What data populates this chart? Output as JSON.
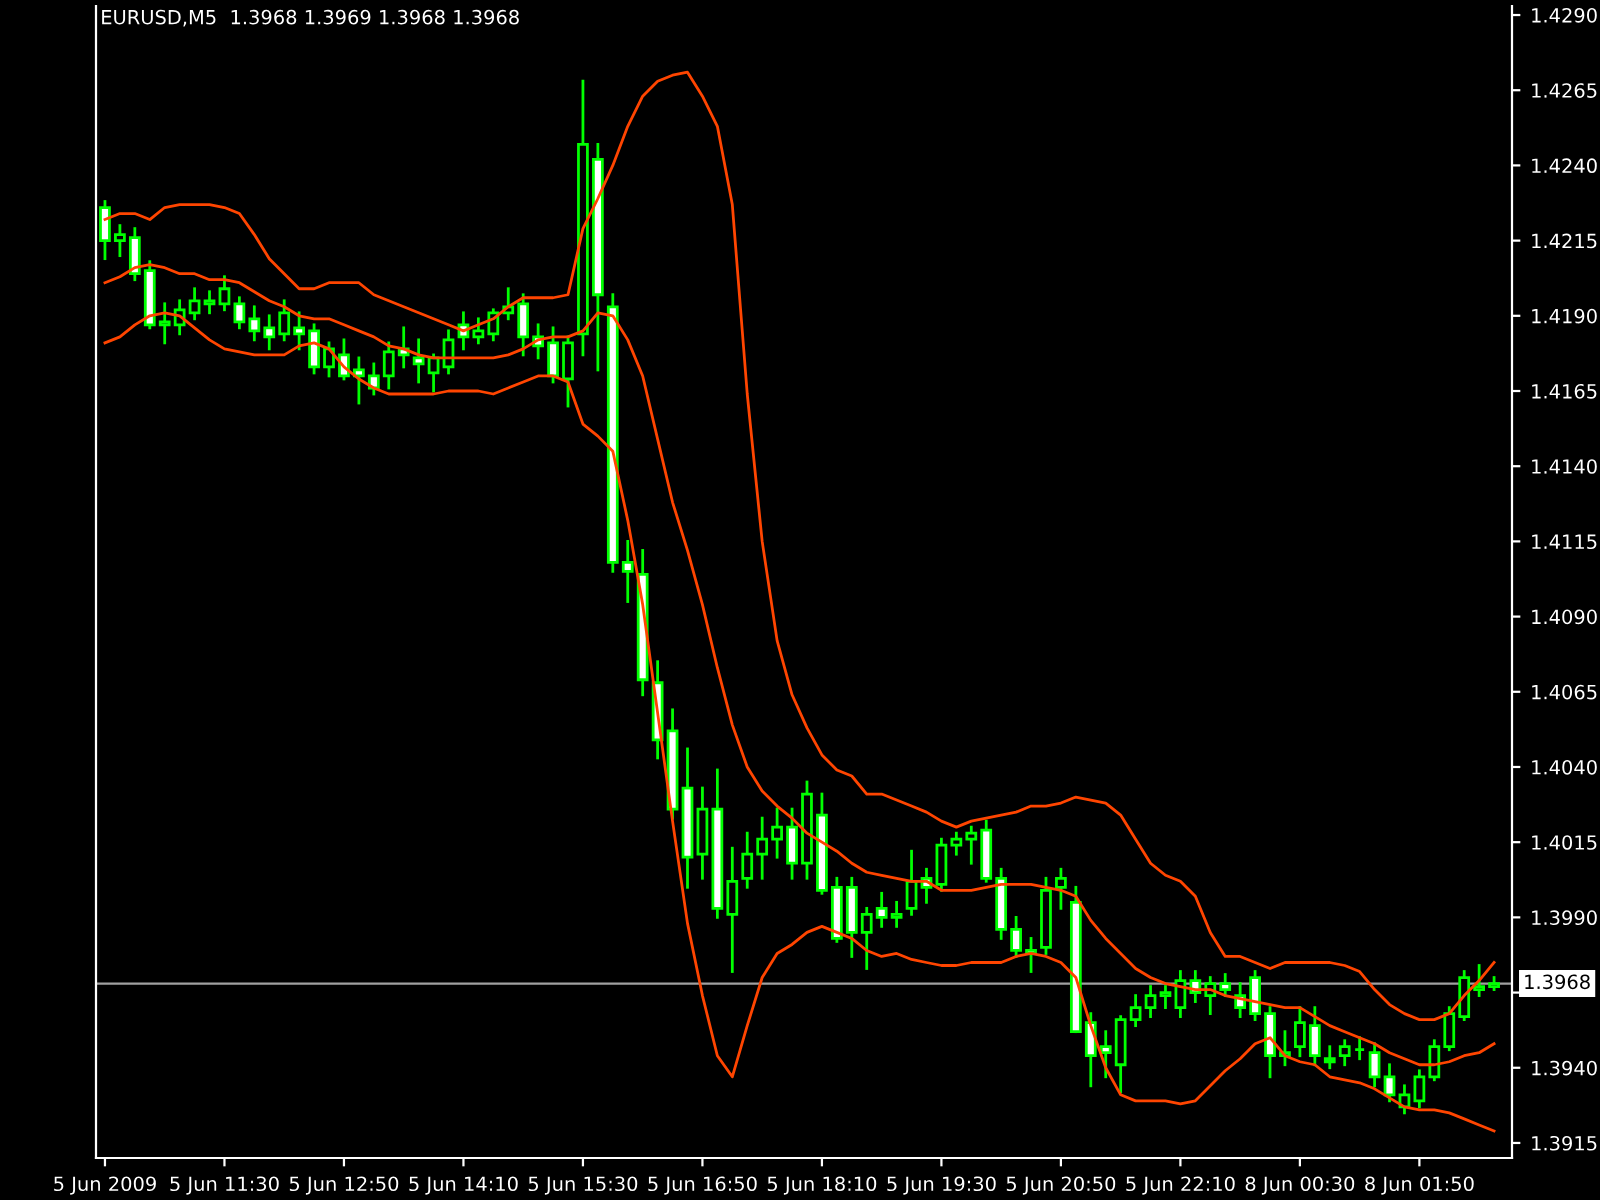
{
  "chart_data": {
    "type": "candlestick",
    "title": "EURUSD,M5  1.3968 1.3969 1.3968 1.3968",
    "categories": [
      "5 Jun 2009",
      null,
      null,
      null,
      null,
      null,
      null,
      null,
      "5 Jun 11:30",
      null,
      null,
      null,
      null,
      null,
      null,
      null,
      "5 Jun 12:50",
      null,
      null,
      null,
      null,
      null,
      null,
      null,
      "5 Jun 14:10",
      null,
      null,
      null,
      null,
      null,
      null,
      null,
      "5 Jun 15:30",
      null,
      null,
      null,
      null,
      null,
      null,
      null,
      "5 Jun 16:50",
      null,
      null,
      null,
      null,
      null,
      null,
      null,
      "5 Jun 18:10",
      null,
      null,
      null,
      null,
      null,
      null,
      null,
      "5 Jun 19:30",
      null,
      null,
      null,
      null,
      null,
      null,
      null,
      "5 Jun 20:50",
      null,
      null,
      null,
      null,
      null,
      null,
      null,
      "5 Jun 22:10",
      null,
      null,
      null,
      null,
      null,
      null,
      null,
      "8 Jun 00:30",
      null,
      null,
      null,
      null,
      null,
      null,
      null,
      "8 Jun 01:50",
      null,
      null,
      null,
      null,
      null
    ],
    "color": "#00ff00",
    "ohlc": [
      [
        1.4226,
        1.4228,
        1.4209,
        1.4215
      ],
      [
        1.4215,
        1.422,
        1.421,
        1.4217
      ],
      [
        1.4216,
        1.4219,
        1.4202,
        1.4204
      ],
      [
        1.4205,
        1.4208,
        1.4186,
        1.4187
      ],
      [
        1.4187,
        1.4194,
        1.4181,
        1.4188
      ],
      [
        1.4187,
        1.4195,
        1.4184,
        1.4192
      ],
      [
        1.4191,
        1.4199,
        1.4189,
        1.4195
      ],
      [
        1.4194,
        1.4198,
        1.4191,
        1.4195
      ],
      [
        1.4194,
        1.4203,
        1.4192,
        1.4199
      ],
      [
        1.4194,
        1.4196,
        1.4186,
        1.4188
      ],
      [
        1.4189,
        1.4193,
        1.4182,
        1.4185
      ],
      [
        1.4186,
        1.419,
        1.4179,
        1.4183
      ],
      [
        1.4184,
        1.4195,
        1.4182,
        1.4191
      ],
      [
        1.4186,
        1.4191,
        1.4179,
        1.4184
      ],
      [
        1.4185,
        1.4187,
        1.4171,
        1.4173
      ],
      [
        1.4173,
        1.4181,
        1.417,
        1.4179
      ],
      [
        1.4177,
        1.4182,
        1.4169,
        1.417
      ],
      [
        1.4172,
        1.4176,
        1.4161,
        1.417
      ],
      [
        1.417,
        1.4174,
        1.4164,
        1.4166
      ],
      [
        1.417,
        1.4181,
        1.4166,
        1.4178
      ],
      [
        1.4179,
        1.4186,
        1.4173,
        1.4177
      ],
      [
        1.4176,
        1.4182,
        1.4168,
        1.4174
      ],
      [
        1.4171,
        1.4177,
        1.4165,
        1.4176
      ],
      [
        1.4173,
        1.4185,
        1.4171,
        1.4182
      ],
      [
        1.4187,
        1.4191,
        1.4179,
        1.4183
      ],
      [
        1.4183,
        1.4189,
        1.4181,
        1.4185
      ],
      [
        1.4184,
        1.4192,
        1.4182,
        1.4191
      ],
      [
        1.4191,
        1.4199,
        1.4189,
        1.4193
      ],
      [
        1.4194,
        1.4197,
        1.4177,
        1.4183
      ],
      [
        1.4183,
        1.4187,
        1.4176,
        1.418
      ],
      [
        1.4181,
        1.4186,
        1.4168,
        1.417
      ],
      [
        1.4169,
        1.4183,
        1.416,
        1.4181
      ],
      [
        1.4184,
        1.4268,
        1.4177,
        1.4247
      ],
      [
        1.4242,
        1.4247,
        1.4172,
        1.4197
      ],
      [
        1.4193,
        1.4197,
        1.4105,
        1.4108
      ],
      [
        1.4108,
        1.4115,
        1.4095,
        1.4105
      ],
      [
        1.4104,
        1.4112,
        1.4064,
        1.4069
      ],
      [
        1.4068,
        1.4075,
        1.4043,
        1.4049
      ],
      [
        1.4052,
        1.4059,
        1.4023,
        1.4026
      ],
      [
        1.4033,
        1.4046,
        1.4,
        1.401
      ],
      [
        1.4011,
        1.4033,
        1.4003,
        1.4026
      ],
      [
        1.4026,
        1.4039,
        1.399,
        1.3993
      ],
      [
        1.3991,
        1.4013,
        1.3972,
        1.4002
      ],
      [
        1.4003,
        1.4018,
        1.4,
        1.4011
      ],
      [
        1.4011,
        1.4023,
        1.4003,
        1.4016
      ],
      [
        1.4016,
        1.4026,
        1.401,
        1.402
      ],
      [
        1.402,
        1.4026,
        1.4003,
        1.4008
      ],
      [
        1.4008,
        1.4035,
        1.4003,
        1.4031
      ],
      [
        1.4024,
        1.4031,
        1.3998,
        1.3999
      ],
      [
        1.4,
        1.4003,
        1.3982,
        1.3983
      ],
      [
        1.4,
        1.4003,
        1.3977,
        1.3985
      ],
      [
        1.3985,
        1.3993,
        1.3973,
        1.3991
      ],
      [
        1.3993,
        1.3998,
        1.3987,
        1.399
      ],
      [
        1.399,
        1.3995,
        1.3987,
        1.3991
      ],
      [
        1.3993,
        1.4012,
        1.3991,
        1.4002
      ],
      [
        1.4003,
        1.4006,
        1.3995,
        1.4
      ],
      [
        1.4001,
        1.4016,
        1.3999,
        1.4014
      ],
      [
        1.4014,
        1.4018,
        1.4011,
        1.4016
      ],
      [
        1.4016,
        1.402,
        1.4008,
        1.4018
      ],
      [
        1.4019,
        1.4022,
        1.4002,
        1.4003
      ],
      [
        1.4003,
        1.4006,
        1.3983,
        1.3986
      ],
      [
        1.3986,
        1.399,
        1.3977,
        1.3979
      ],
      [
        1.3979,
        1.3983,
        1.3972,
        1.3978
      ],
      [
        1.398,
        1.4003,
        1.3978,
        1.3999
      ],
      [
        1.4,
        1.4006,
        1.3993,
        1.4003
      ],
      [
        1.3995,
        1.4,
        1.3952,
        1.3952
      ],
      [
        1.3955,
        1.3958,
        1.3934,
        1.3944
      ],
      [
        1.3947,
        1.3952,
        1.3937,
        1.3945
      ],
      [
        1.3941,
        1.3957,
        1.3932,
        1.3956
      ],
      [
        1.3956,
        1.3964,
        1.3954,
        1.396
      ],
      [
        1.396,
        1.3967,
        1.3957,
        1.3964
      ],
      [
        1.3964,
        1.3967,
        1.396,
        1.3965
      ],
      [
        1.396,
        1.3972,
        1.3957,
        1.3969
      ],
      [
        1.3969,
        1.3972,
        1.3962,
        1.3965
      ],
      [
        1.3964,
        1.397,
        1.3958,
        1.3968
      ],
      [
        1.3968,
        1.3971,
        1.3964,
        1.3966
      ],
      [
        1.3964,
        1.3968,
        1.3957,
        1.396
      ],
      [
        1.397,
        1.3972,
        1.3956,
        1.3958
      ],
      [
        1.3958,
        1.396,
        1.3937,
        1.3944
      ],
      [
        1.3944,
        1.3952,
        1.3941,
        1.3945
      ],
      [
        1.3947,
        1.396,
        1.3944,
        1.3955
      ],
      [
        1.3954,
        1.396,
        1.3941,
        1.3944
      ],
      [
        1.3943,
        1.3947,
        1.394,
        1.3942
      ],
      [
        1.3944,
        1.3949,
        1.3941,
        1.3947
      ],
      [
        1.3946,
        1.395,
        1.3943,
        1.3946
      ],
      [
        1.3945,
        1.3948,
        1.3934,
        1.3937
      ],
      [
        1.3937,
        1.3941,
        1.3929,
        1.3931
      ],
      [
        1.3927,
        1.3934,
        1.3925,
        1.3931
      ],
      [
        1.3929,
        1.3939,
        1.3927,
        1.3937
      ],
      [
        1.3937,
        1.3949,
        1.3936,
        1.3947
      ],
      [
        1.3947,
        1.396,
        1.3946,
        1.3958
      ],
      [
        1.3957,
        1.3972,
        1.3956,
        1.397
      ],
      [
        1.3966,
        1.3974,
        1.3964,
        1.3967
      ],
      [
        1.3967,
        1.397,
        1.3966,
        1.3968
      ]
    ],
    "series": [
      {
        "type": "line",
        "color": "#ff4500",
        "values": [
          1.4222,
          1.4224,
          1.4224,
          1.4222,
          1.4226,
          1.4227,
          1.4227,
          1.4227,
          1.4226,
          1.4224,
          1.4217,
          1.4209,
          1.4204,
          1.4199,
          1.4199,
          1.4201,
          1.4201,
          1.4201,
          1.4197,
          1.4195,
          1.4193,
          1.4191,
          1.4189,
          1.4187,
          1.4185,
          1.4187,
          1.4189,
          1.4193,
          1.4196,
          1.4196,
          1.4196,
          1.4197,
          1.4219,
          1.4229,
          1.424,
          1.4253,
          1.4263,
          1.4268,
          1.427,
          1.4271,
          1.4263,
          1.4253,
          1.4227,
          1.4164,
          1.4115,
          1.4082,
          1.4064,
          1.4053,
          1.4044,
          1.4039,
          1.4037,
          1.4031,
          1.4031,
          1.4029,
          1.4027,
          1.4025,
          1.4022,
          1.402,
          1.4022,
          1.4023,
          1.4024,
          1.4025,
          1.4027,
          1.4027,
          1.4028,
          1.403,
          1.4029,
          1.4028,
          1.4024,
          1.4016,
          1.4008,
          1.4004,
          1.4002,
          1.3997,
          1.3985,
          1.3977,
          1.3977,
          1.3975,
          1.3973,
          1.3975,
          1.3975,
          1.3975,
          1.3975,
          1.3974,
          1.3972,
          1.3966,
          1.3961,
          1.3958,
          1.3956,
          1.3956,
          1.3958,
          1.3964,
          1.3969,
          1.3975
        ]
      },
      {
        "type": "line",
        "color": "#ff4500",
        "values": [
          1.4201,
          1.4203,
          1.4206,
          1.4207,
          1.4206,
          1.4204,
          1.4204,
          1.4202,
          1.4202,
          1.4201,
          1.4198,
          1.4195,
          1.4193,
          1.419,
          1.4189,
          1.4189,
          1.4187,
          1.4185,
          1.4183,
          1.418,
          1.4179,
          1.4177,
          1.4176,
          1.4176,
          1.4176,
          1.4176,
          1.4176,
          1.4177,
          1.4179,
          1.4182,
          1.4183,
          1.4183,
          1.4185,
          1.4191,
          1.419,
          1.4182,
          1.417,
          1.4149,
          1.4128,
          1.4112,
          1.4094,
          1.4073,
          1.4054,
          1.404,
          1.4032,
          1.4027,
          1.4023,
          1.4018,
          1.4015,
          1.4012,
          1.4008,
          1.4005,
          1.4004,
          1.4003,
          1.4002,
          1.4002,
          1.3999,
          1.3999,
          1.3999,
          1.4,
          1.4001,
          1.4001,
          1.4001,
          1.4,
          1.3999,
          1.3997,
          1.3989,
          1.3983,
          1.3978,
          1.3973,
          1.397,
          1.3968,
          1.3967,
          1.3966,
          1.3966,
          1.3964,
          1.3963,
          1.3962,
          1.3961,
          1.396,
          1.396,
          1.3957,
          1.3954,
          1.3952,
          1.395,
          1.3948,
          1.3945,
          1.3943,
          1.3941,
          1.3941,
          1.3942,
          1.3944,
          1.3945,
          1.3948
        ]
      },
      {
        "type": "line",
        "color": "#ff4500",
        "values": [
          1.4181,
          1.4183,
          1.4187,
          1.419,
          1.4191,
          1.419,
          1.4186,
          1.4182,
          1.4179,
          1.4178,
          1.4177,
          1.4177,
          1.4177,
          1.418,
          1.4181,
          1.4179,
          1.4173,
          1.4169,
          1.4166,
          1.4164,
          1.4164,
          1.4164,
          1.4164,
          1.4165,
          1.4165,
          1.4165,
          1.4164,
          1.4166,
          1.4168,
          1.417,
          1.417,
          1.4168,
          1.4154,
          1.415,
          1.4145,
          1.4122,
          1.4094,
          1.4058,
          1.4022,
          1.3988,
          1.3964,
          1.3944,
          1.3937,
          1.3954,
          1.397,
          1.3978,
          1.3981,
          1.3985,
          1.3987,
          1.3985,
          1.3983,
          1.3979,
          1.3977,
          1.3978,
          1.3976,
          1.3975,
          1.3974,
          1.3974,
          1.3975,
          1.3975,
          1.3975,
          1.3977,
          1.3978,
          1.3977,
          1.3975,
          1.397,
          1.3954,
          1.394,
          1.3931,
          1.3929,
          1.3929,
          1.3929,
          1.3928,
          1.3929,
          1.3934,
          1.3939,
          1.3943,
          1.3948,
          1.395,
          1.3944,
          1.3942,
          1.3941,
          1.3937,
          1.3936,
          1.3935,
          1.3933,
          1.393,
          1.3927,
          1.3926,
          1.3926,
          1.3925,
          1.3923,
          1.3921,
          1.3919
        ]
      }
    ],
    "ylim": [
      1.391,
      1.4293
    ],
    "yticks": [
      {
        "value": 1.3915,
        "label": "1.3915"
      },
      {
        "value": 1.394,
        "label": "1.3940"
      },
      {
        "value": 1.3965,
        "label": null
      },
      {
        "value": 1.399,
        "label": "1.3990"
      },
      {
        "value": 1.4015,
        "label": "1.4015"
      },
      {
        "value": 1.404,
        "label": "1.4040"
      },
      {
        "value": 1.4065,
        "label": "1.4065"
      },
      {
        "value": 1.409,
        "label": "1.4090"
      },
      {
        "value": 1.4115,
        "label": "1.4115"
      },
      {
        "value": 1.414,
        "label": "1.4140"
      },
      {
        "value": 1.4165,
        "label": "1.4165"
      },
      {
        "value": 1.419,
        "label": "1.4190"
      },
      {
        "value": 1.4215,
        "label": "1.4215"
      },
      {
        "value": 1.424,
        "label": "1.4240"
      },
      {
        "value": 1.4265,
        "label": "1.4265"
      },
      {
        "value": 1.429,
        "label": "1.4290"
      }
    ],
    "ref_lines": [
      {
        "axis": "y",
        "value": 1.3968,
        "label": "1.3968",
        "color": "#a0a0a0"
      }
    ]
  }
}
